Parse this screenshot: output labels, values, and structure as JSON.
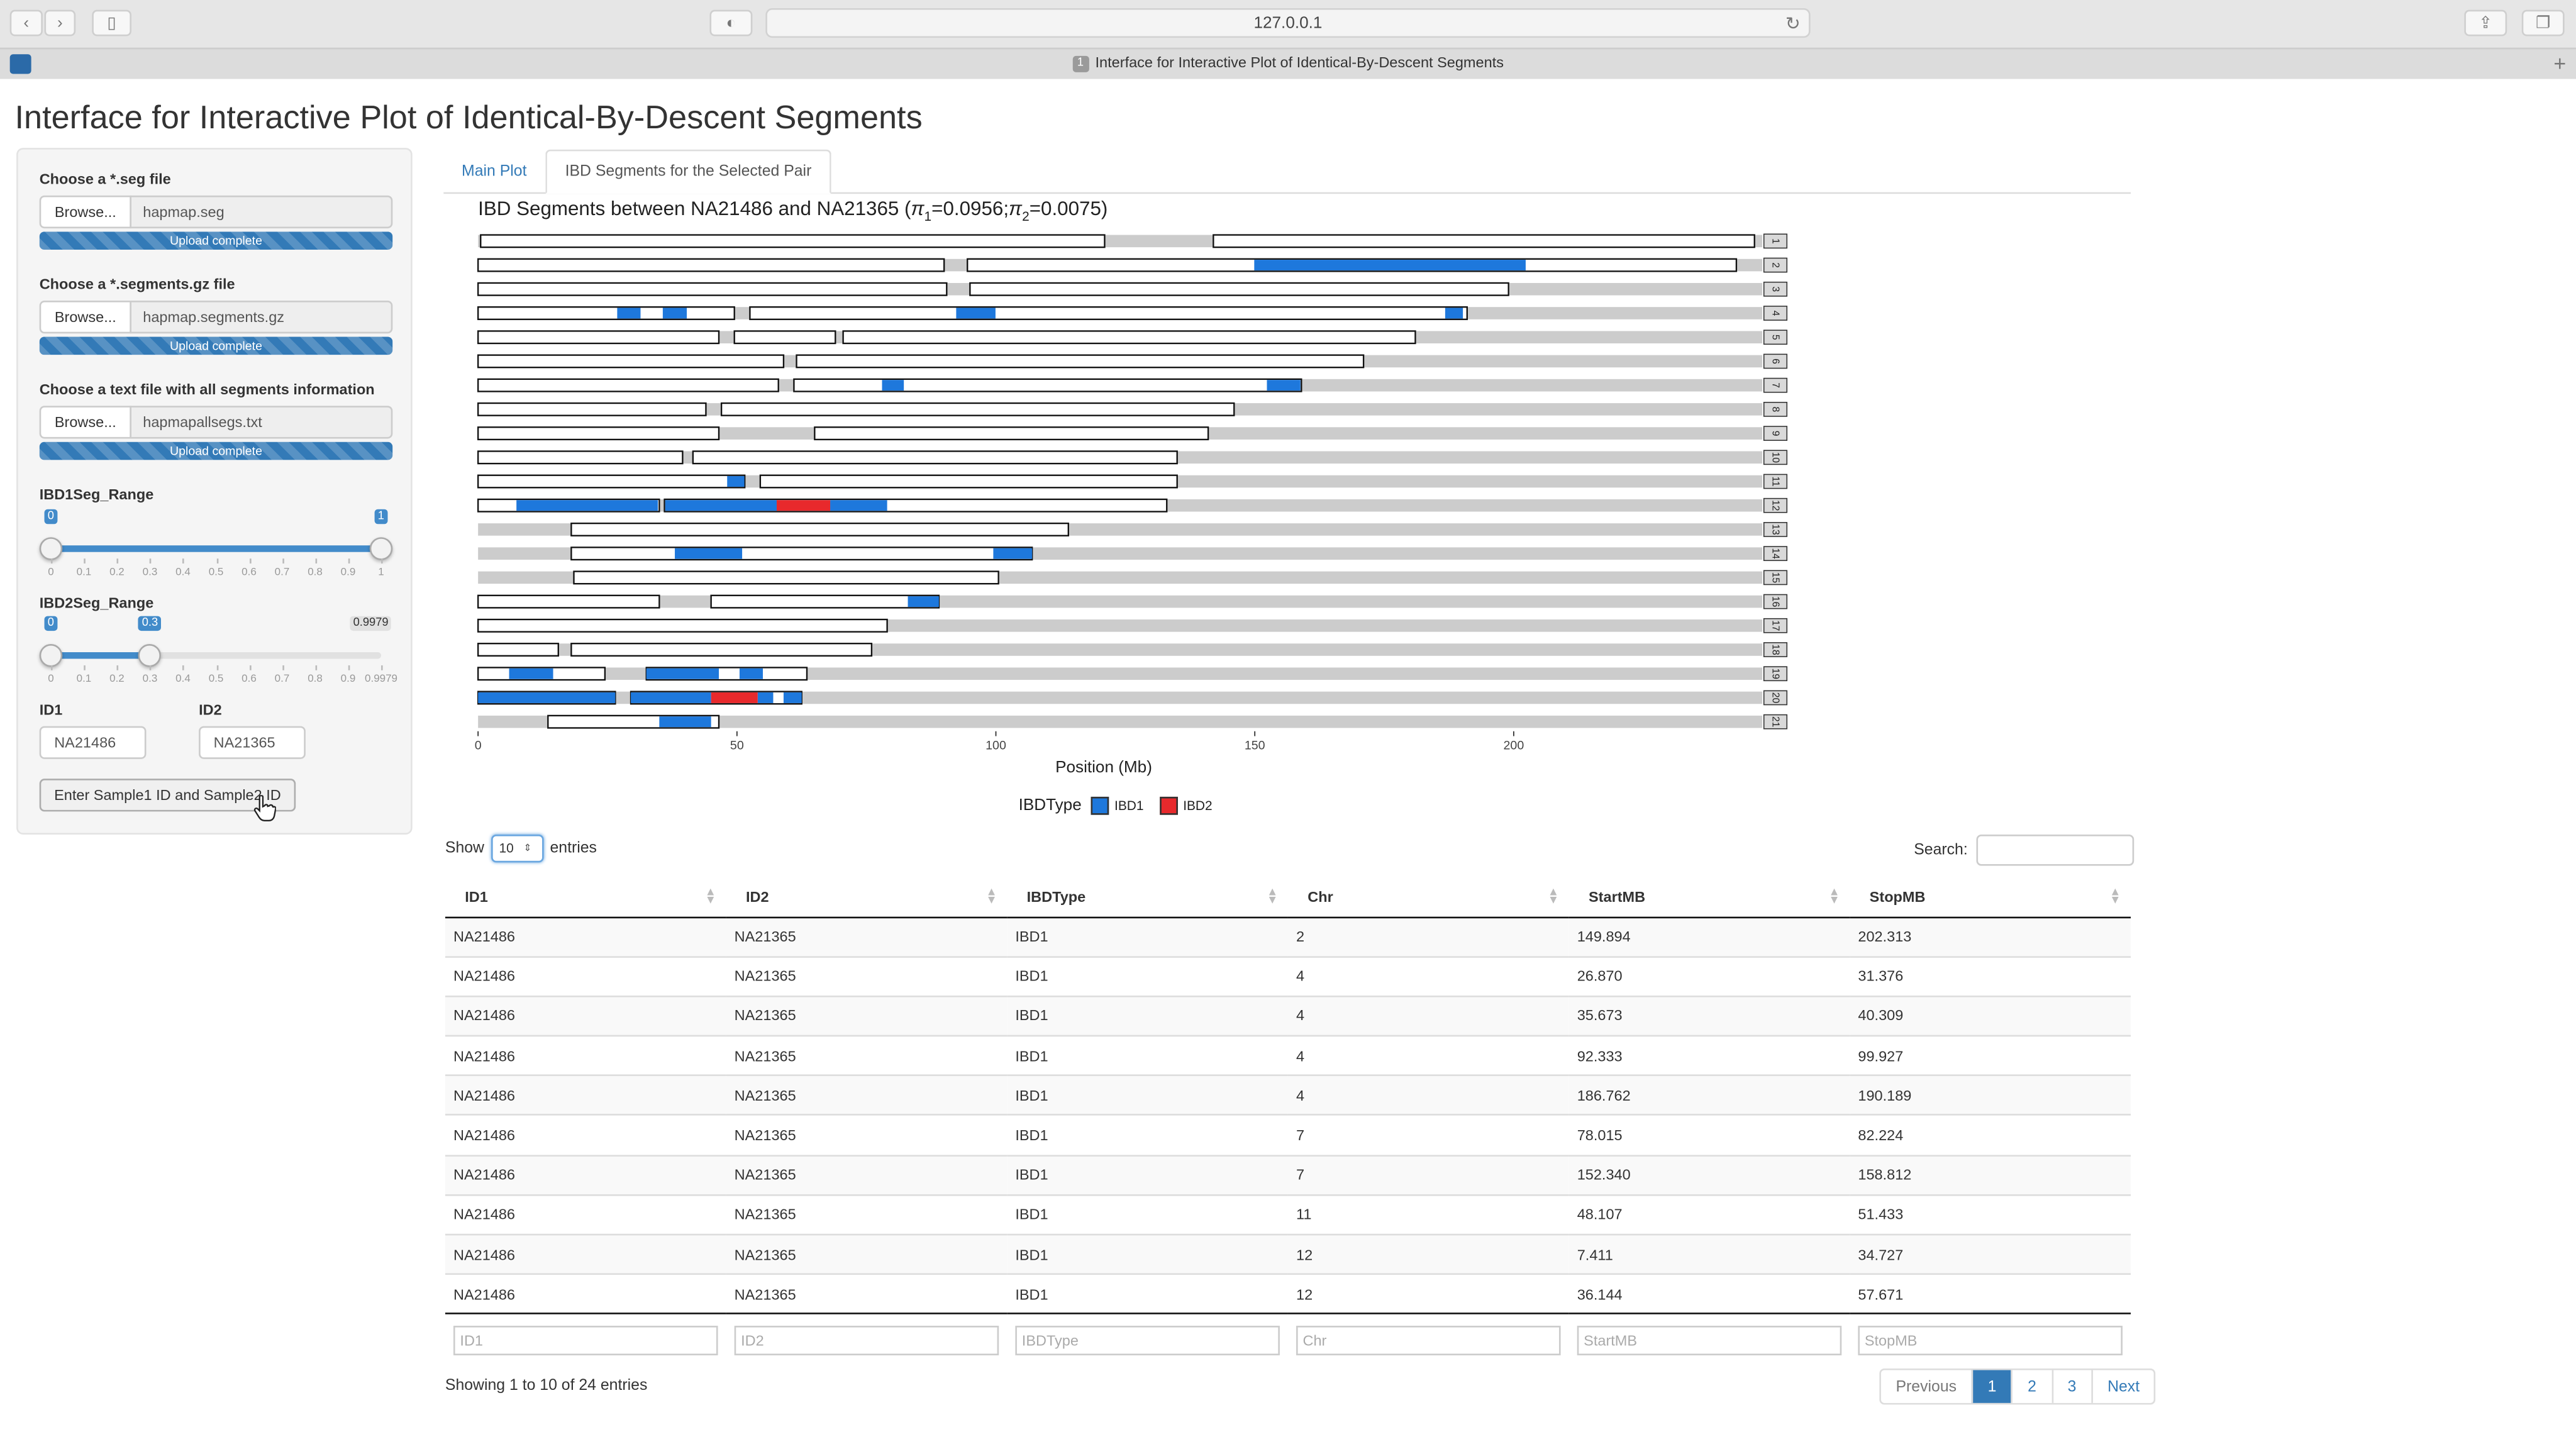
{
  "browser": {
    "url": "127.0.0.1",
    "tab_badge": "1",
    "tab_title": "Interface for Interactive Plot of Identical-By-Descent Segments"
  },
  "app_title": "Interface for Interactive Plot of Identical-By-Descent Segments",
  "sidebar": {
    "seg_label": "Choose a *.seg file",
    "seg_browse": "Browse...",
    "seg_file": "hapmap.seg",
    "seg_status": "Upload complete",
    "segments_label": "Choose a *.segments.gz file",
    "segments_browse": "Browse...",
    "segments_file": "hapmap.segments.gz",
    "segments_status": "Upload complete",
    "all_label": "Choose a text file with all segments information",
    "all_browse": "Browse...",
    "all_file": "hapmapallsegs.txt",
    "all_status": "Upload complete",
    "ibd1": {
      "label": "IBD1Seg_Range",
      "min_badge": "0",
      "max_badge": "1",
      "low": 0,
      "high": 1,
      "ticks": [
        "0",
        "0.1",
        "0.2",
        "0.3",
        "0.4",
        "0.5",
        "0.6",
        "0.7",
        "0.8",
        "0.9",
        "1"
      ]
    },
    "ibd2": {
      "label": "IBD2Seg_Range",
      "min_badge": "0",
      "val_badge": "0.3",
      "max_badge": "0.9979",
      "low": 0,
      "high": 0.3,
      "ticks": [
        "0",
        "0.1",
        "0.2",
        "0.3",
        "0.4",
        "0.5",
        "0.6",
        "0.7",
        "0.8",
        "0.9",
        "0.9979"
      ]
    },
    "id1_label": "ID1",
    "id1_value": "NA21486",
    "id2_label": "ID2",
    "id2_value": "NA21365",
    "enter_button": "Enter Sample1 ID and Sample2 ID"
  },
  "tabs": [
    {
      "label": "Main Plot",
      "active": false
    },
    {
      "label": "IBD Segments for the Selected Pair",
      "active": true
    }
  ],
  "plot": {
    "title_prefix": "IBD Segments between NA21486 and NA21365 (",
    "pi1_sym": "π",
    "pi1_sub": "1",
    "pi1_val": "=0.0956;",
    "pi2_sym": "π",
    "pi2_sub": "2",
    "pi2_val": "=0.0075)",
    "xlabel": "Position (Mb)",
    "legend_title": "IBDType",
    "legend": [
      {
        "label": "IBD1",
        "color": "#1e78dc"
      },
      {
        "label": "IBD2",
        "color": "#e8292c"
      }
    ]
  },
  "chart_data": {
    "type": "bar",
    "orientation": "horizontal",
    "xlabel": "Position (Mb)",
    "xlim": [
      0,
      248
    ],
    "x_ticks": [
      0,
      50,
      100,
      150,
      200
    ],
    "colors": {
      "IBD1": "#1e78dc",
      "IBD2": "#e8292c",
      "background": "#cccccc",
      "region": "#ffffff"
    },
    "chromosomes": [
      {
        "chr": "1",
        "len": 248,
        "regions": [
          [
            0.5,
            121
          ],
          [
            142,
            246.5
          ]
        ],
        "ibd1": [],
        "ibd2": []
      },
      {
        "chr": "2",
        "len": 243,
        "regions": [
          [
            0,
            90
          ],
          [
            94.5,
            243
          ]
        ],
        "ibd1": [
          [
            149.894,
            202.313
          ]
        ],
        "ibd2": []
      },
      {
        "chr": "3",
        "len": 199,
        "regions": [
          [
            0,
            90.5
          ],
          [
            95,
            199
          ]
        ],
        "ibd1": [],
        "ibd2": []
      },
      {
        "chr": "4",
        "len": 191,
        "regions": [
          [
            0,
            49.5
          ],
          [
            52.5,
            191
          ]
        ],
        "ibd1": [
          [
            26.87,
            31.376
          ],
          [
            35.673,
            40.309
          ],
          [
            92.333,
            99.927
          ],
          [
            186.762,
            190.189
          ]
        ],
        "ibd2": []
      },
      {
        "chr": "5",
        "len": 181,
        "regions": [
          [
            0,
            46.5
          ],
          [
            49.5,
            69
          ],
          [
            70.5,
            181
          ]
        ],
        "ibd1": [],
        "ibd2": []
      },
      {
        "chr": "6",
        "len": 171,
        "regions": [
          [
            0,
            59
          ],
          [
            61.5,
            171
          ]
        ],
        "ibd1": [],
        "ibd2": []
      },
      {
        "chr": "7",
        "len": 159,
        "regions": [
          [
            0,
            58
          ],
          [
            61,
            159
          ]
        ],
        "ibd1": [
          [
            78.015,
            82.224
          ],
          [
            152.34,
            158.812
          ]
        ],
        "ibd2": []
      },
      {
        "chr": "8",
        "len": 146,
        "regions": [
          [
            0,
            44
          ],
          [
            47,
            146
          ]
        ],
        "ibd1": [],
        "ibd2": []
      },
      {
        "chr": "9",
        "len": 141,
        "regions": [
          [
            0,
            46.5
          ],
          [
            65,
            141
          ]
        ],
        "ibd1": [],
        "ibd2": []
      },
      {
        "chr": "10",
        "len": 135,
        "regions": [
          [
            0,
            39.5
          ],
          [
            41.5,
            135
          ]
        ],
        "ibd1": [],
        "ibd2": []
      },
      {
        "chr": "11",
        "len": 135,
        "regions": [
          [
            0,
            51.5
          ],
          [
            54.5,
            135
          ]
        ],
        "ibd1": [
          [
            48.107,
            51.433
          ]
        ],
        "ibd2": []
      },
      {
        "chr": "12",
        "len": 133,
        "regions": [
          [
            0,
            35
          ],
          [
            36,
            133
          ]
        ],
        "ibd1": [
          [
            7.411,
            34.727
          ],
          [
            36.144,
            57.671
          ],
          [
            68,
            79
          ]
        ],
        "ibd2": [
          [
            57.671,
            68
          ]
        ]
      },
      {
        "chr": "13",
        "len": 114,
        "regions": [
          [
            18,
            114
          ]
        ],
        "ibd1": [],
        "ibd2": []
      },
      {
        "chr": "14",
        "len": 107,
        "regions": [
          [
            18,
            107
          ]
        ],
        "ibd1": [
          [
            38,
            51
          ],
          [
            99.5,
            107
          ]
        ],
        "ibd2": []
      },
      {
        "chr": "15",
        "len": 102,
        "regions": [
          [
            18.5,
            100.5
          ]
        ],
        "ibd1": [],
        "ibd2": []
      },
      {
        "chr": "16",
        "len": 90,
        "regions": [
          [
            0,
            35
          ],
          [
            45,
            89
          ]
        ],
        "ibd1": [
          [
            83,
            89
          ]
        ],
        "ibd2": []
      },
      {
        "chr": "17",
        "len": 83,
        "regions": [
          [
            0,
            79
          ]
        ],
        "ibd1": [],
        "ibd2": []
      },
      {
        "chr": "18",
        "len": 78,
        "regions": [
          [
            0,
            15.5
          ],
          [
            18,
            76
          ]
        ],
        "ibd1": [],
        "ibd2": []
      },
      {
        "chr": "19",
        "len": 64,
        "regions": [
          [
            0,
            24.5
          ],
          [
            32.5,
            63.5
          ]
        ],
        "ibd1": [
          [
            6,
            14.5
          ],
          [
            32.5,
            46.5
          ],
          [
            50.5,
            55
          ]
        ],
        "ibd2": []
      },
      {
        "chr": "20",
        "len": 64,
        "regions": [
          [
            0,
            26.5
          ],
          [
            29.5,
            62.5
          ]
        ],
        "ibd1": [
          [
            0,
            26.5
          ],
          [
            29.5,
            45
          ],
          [
            54,
            57
          ],
          [
            59,
            62.5
          ]
        ],
        "ibd2": [
          [
            45,
            54
          ]
        ]
      },
      {
        "chr": "21",
        "len": 47,
        "regions": [
          [
            13.5,
            46.5
          ]
        ],
        "ibd1": [
          [
            35,
            45
          ]
        ],
        "ibd2": []
      }
    ]
  },
  "table": {
    "length_prefix": "Show",
    "length_value": "10",
    "length_suffix": "entries",
    "search_label": "Search:",
    "columns": [
      "ID1",
      "ID2",
      "IBDType",
      "Chr",
      "StartMB",
      "StopMB"
    ],
    "rows": [
      [
        "NA21486",
        "NA21365",
        "IBD1",
        "2",
        "149.894",
        "202.313"
      ],
      [
        "NA21486",
        "NA21365",
        "IBD1",
        "4",
        "26.870",
        "31.376"
      ],
      [
        "NA21486",
        "NA21365",
        "IBD1",
        "4",
        "35.673",
        "40.309"
      ],
      [
        "NA21486",
        "NA21365",
        "IBD1",
        "4",
        "92.333",
        "99.927"
      ],
      [
        "NA21486",
        "NA21365",
        "IBD1",
        "4",
        "186.762",
        "190.189"
      ],
      [
        "NA21486",
        "NA21365",
        "IBD1",
        "7",
        "78.015",
        "82.224"
      ],
      [
        "NA21486",
        "NA21365",
        "IBD1",
        "7",
        "152.340",
        "158.812"
      ],
      [
        "NA21486",
        "NA21365",
        "IBD1",
        "11",
        "48.107",
        "51.433"
      ],
      [
        "NA21486",
        "NA21365",
        "IBD1",
        "12",
        "7.411",
        "34.727"
      ],
      [
        "NA21486",
        "NA21365",
        "IBD1",
        "12",
        "36.144",
        "57.671"
      ]
    ],
    "filter_placeholders": [
      "ID1",
      "ID2",
      "IBDType",
      "Chr",
      "StartMB",
      "StopMB"
    ],
    "info": "Showing 1 to 10 of 24 entries",
    "pager": [
      "Previous",
      "1",
      "2",
      "3",
      "Next"
    ],
    "current_page": "1"
  }
}
